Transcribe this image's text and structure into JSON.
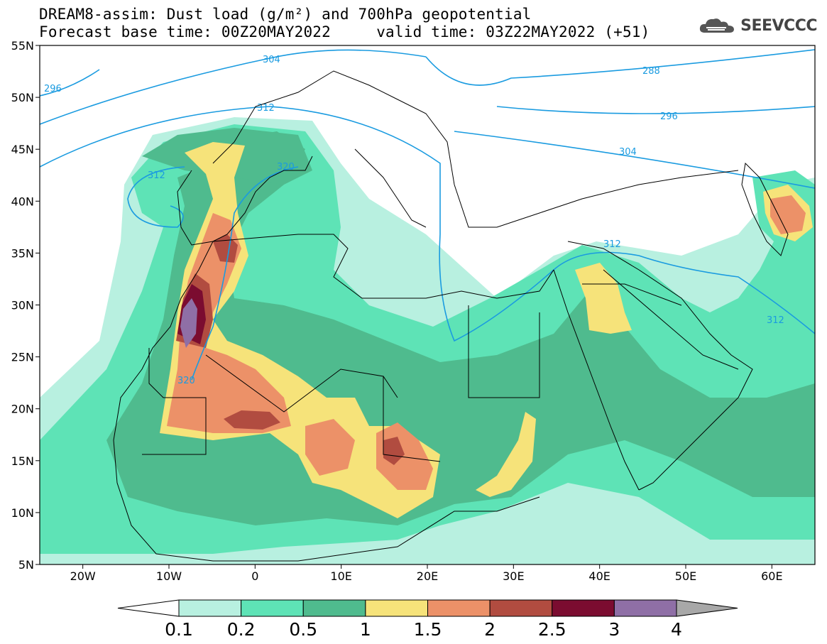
{
  "title": {
    "line1": "DREAM8-assim: Dust load (g/m²) and 700hPa geopotential",
    "line2": "Forecast base time: 00Z20MAY2022     valid time: 03Z22MAY2022 (+51)"
  },
  "logo": {
    "text": "SEEVCCC",
    "icon": "cloud-icon"
  },
  "axes": {
    "lat_labels": [
      "55N",
      "50N",
      "45N",
      "40N",
      "35N",
      "30N",
      "25N",
      "20N",
      "15N",
      "10N",
      "5N"
    ],
    "lat_values": [
      55,
      50,
      45,
      40,
      35,
      30,
      25,
      20,
      15,
      10,
      5
    ],
    "lon_labels": [
      "20W",
      "10W",
      "0",
      "10E",
      "20E",
      "30E",
      "40E",
      "50E",
      "60E"
    ],
    "lon_values": [
      -20,
      -10,
      0,
      10,
      20,
      30,
      40,
      50,
      60
    ],
    "lon_range": [
      -25,
      65
    ],
    "lat_range": [
      5,
      55
    ]
  },
  "colorbar": {
    "ticks": [
      "0.1",
      "0.2",
      "0.5",
      "1",
      "1.5",
      "2",
      "2.5",
      "3",
      "4"
    ],
    "colors": [
      "#b8f0e0",
      "#5ee3b6",
      "#4fbb8e",
      "#f6e37a",
      "#ec9168",
      "#b14c40",
      "#7b0c30",
      "#8f6fa6"
    ],
    "under_color": "#ffffff",
    "over_color": "#a8a8a8"
  },
  "contours": {
    "color": "#1a9be0",
    "labels": [
      "296",
      "304",
      "312",
      "320",
      "288",
      "296",
      "304",
      "312",
      "320",
      "312",
      "312"
    ]
  }
}
